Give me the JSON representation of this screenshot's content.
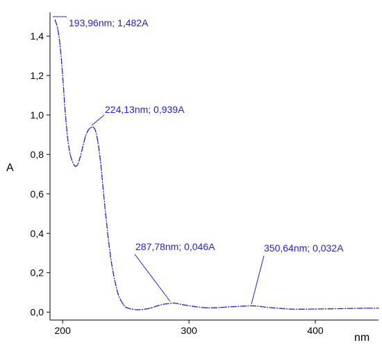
{
  "chart_data": {
    "type": "line",
    "title": "",
    "xlabel": "nm",
    "ylabel": "A",
    "xlim": [
      190,
      450
    ],
    "ylim": [
      -0.04,
      1.52
    ],
    "x_ticks": [
      200,
      300,
      400
    ],
    "x_tick_labels": [
      "200",
      "300",
      "400"
    ],
    "y_ticks": [
      0.0,
      0.2,
      0.4,
      0.6,
      0.8,
      1.0,
      1.2,
      1.4
    ],
    "y_tick_labels": [
      "0,0",
      "0,2",
      "0,4",
      "0,6",
      "0,8",
      "1,0",
      "1,2",
      "1,4"
    ],
    "grid": false,
    "colors": {
      "line": "#2222cc",
      "annotation": "#2222cc",
      "axis": "#000000"
    },
    "series": [
      {
        "x": [
          193.96,
          196,
          198,
          200,
          202,
          204,
          206,
          208,
          210,
          212,
          214,
          216,
          218,
          220,
          222,
          224.13,
          226,
          228,
          230,
          232,
          234,
          236,
          238,
          240,
          242,
          244,
          246,
          248,
          250,
          255,
          260,
          265,
          270,
          275,
          280,
          287.78,
          295,
          305,
          315,
          325,
          335,
          350.64,
          360,
          370,
          380,
          390,
          400,
          420,
          440,
          450
        ],
        "y": [
          1.482,
          1.44,
          1.35,
          1.2,
          1.02,
          0.88,
          0.8,
          0.76,
          0.74,
          0.75,
          0.79,
          0.84,
          0.89,
          0.92,
          0.935,
          0.939,
          0.92,
          0.86,
          0.76,
          0.63,
          0.5,
          0.38,
          0.28,
          0.2,
          0.14,
          0.09,
          0.06,
          0.04,
          0.025,
          0.015,
          0.012,
          0.015,
          0.022,
          0.032,
          0.04,
          0.046,
          0.038,
          0.028,
          0.022,
          0.024,
          0.028,
          0.032,
          0.026,
          0.02,
          0.016,
          0.015,
          0.016,
          0.018,
          0.02,
          0.02
        ]
      }
    ],
    "annotations": [
      {
        "x": 193.96,
        "y": 1.482,
        "label": "193,96nm; 1,482A"
      },
      {
        "x": 224.13,
        "y": 0.939,
        "label": "224,13nm; 0,939A"
      },
      {
        "x": 287.78,
        "y": 0.046,
        "label": "287,78nm; 0,046A"
      },
      {
        "x": 350.64,
        "y": 0.032,
        "label": "350,64nm; 0,032A"
      }
    ]
  }
}
